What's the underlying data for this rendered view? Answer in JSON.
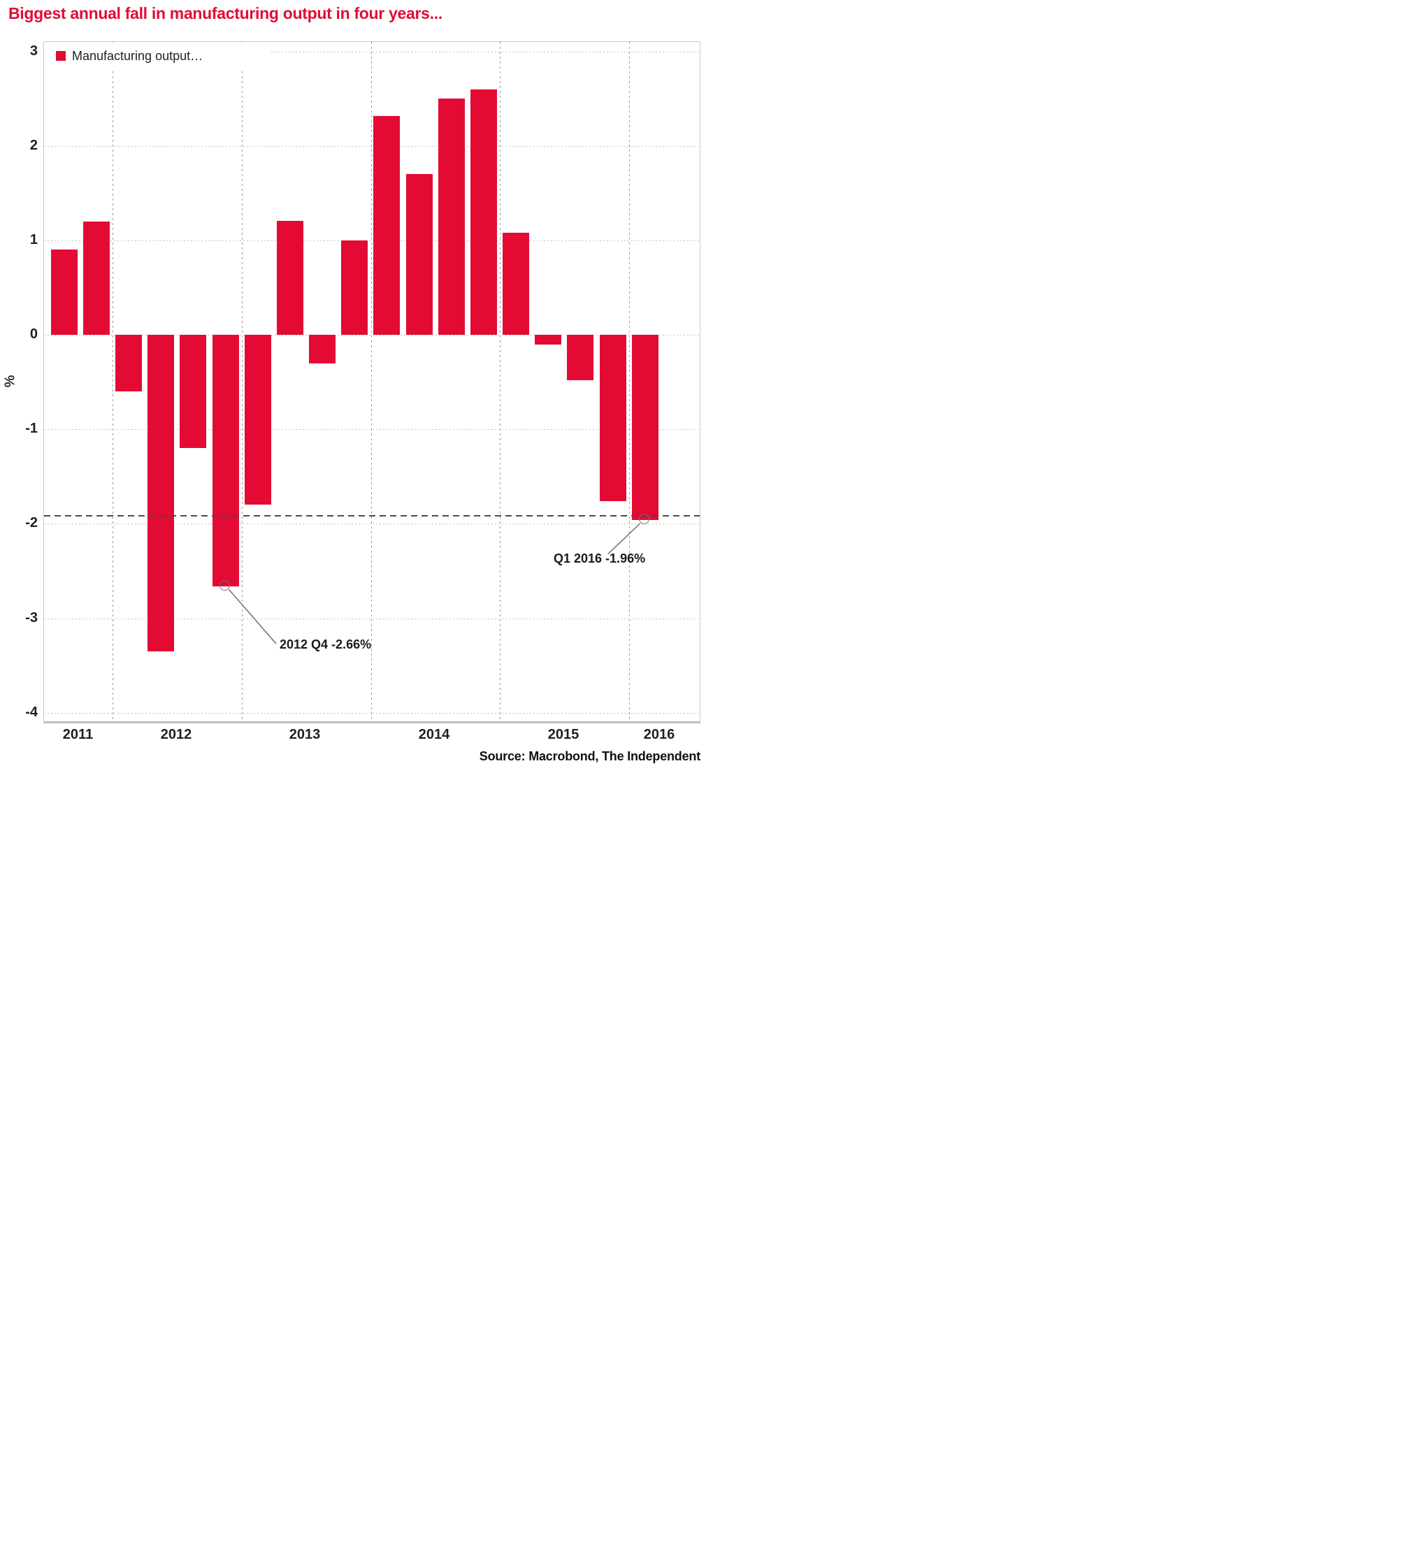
{
  "title": "Biggest annual fall in manufacturing output in four years...",
  "accent_color": "#e30b33",
  "source": "Source: Macrobond, The Independent",
  "chart_data": {
    "type": "bar",
    "title": "Biggest annual fall in manufacturing output in four years...",
    "legend": [
      "Manufacturing output…"
    ],
    "legend_position": "top-left",
    "ylabel": "%",
    "bar_color": "#e30b33",
    "categories": [
      "2011 Q3",
      "2011 Q4",
      "2012 Q1",
      "2012 Q2",
      "2012 Q3",
      "2012 Q4",
      "2013 Q1",
      "2013 Q2",
      "2013 Q3",
      "2013 Q4",
      "2014 Q1",
      "2014 Q2",
      "2014 Q3",
      "2014 Q4",
      "2015 Q1",
      "2015 Q2",
      "2015 Q3",
      "2015 Q4",
      "2016 Q1"
    ],
    "values": [
      0.9,
      1.2,
      -0.6,
      -3.35,
      -1.2,
      -2.66,
      -1.8,
      1.21,
      -0.3,
      1.0,
      2.32,
      1.7,
      2.5,
      2.6,
      1.08,
      -0.1,
      -0.48,
      -1.76,
      -1.96
    ],
    "yticks": [
      3,
      2,
      1,
      0,
      -1,
      -2,
      -3,
      -4
    ],
    "ylim": [
      -4.05,
      3.2
    ],
    "x_year_labels": [
      "2011",
      "2012",
      "2013",
      "2014",
      "2015",
      "2016"
    ],
    "grid": true,
    "reference_line": {
      "y": -1.91,
      "style": "dashed"
    },
    "annotations": [
      {
        "label": "2012 Q4 -2.66%",
        "target_category": "2012 Q4",
        "index": 5,
        "value": -2.66
      },
      {
        "label": "Q1 2016 -1.96%",
        "target_category": "2016 Q1",
        "index": 18,
        "value": -1.96
      }
    ]
  }
}
